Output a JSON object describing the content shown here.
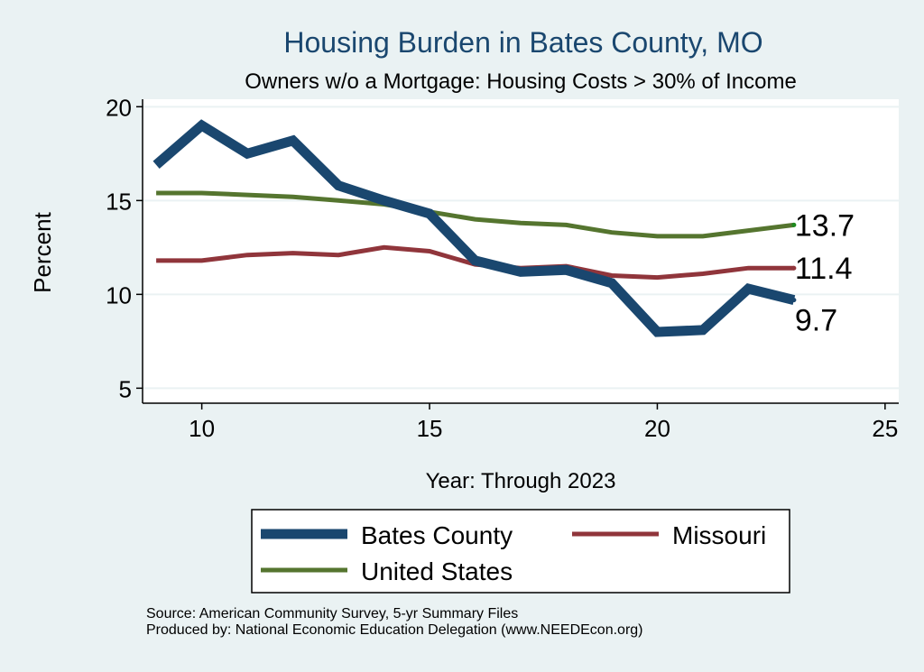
{
  "chart_data": {
    "type": "line",
    "title": "Housing Burden in Bates County, MO",
    "subtitle": "Owners w/o a Mortgage: Housing Costs > 30% of Income",
    "xlabel": "Year: Through 2023",
    "ylabel": "Percent",
    "xlim": [
      8.7,
      25.3
    ],
    "ylim": [
      4.2,
      20.4
    ],
    "xticks": [
      10,
      15,
      20,
      25
    ],
    "yticks": [
      5,
      10,
      15,
      20
    ],
    "grid": true,
    "legend_position": "bottom",
    "x": [
      9,
      10,
      11,
      12,
      13,
      14,
      15,
      16,
      17,
      18,
      19,
      20,
      21,
      22,
      23
    ],
    "series": [
      {
        "name": "Bates County",
        "color": "#1a476f",
        "values": [
          16.9,
          19.0,
          17.5,
          18.2,
          15.8,
          15.0,
          14.3,
          11.8,
          11.2,
          11.3,
          10.6,
          8.0,
          8.1,
          10.3,
          9.7
        ],
        "end_label": "9.7"
      },
      {
        "name": "Missouri",
        "color": "#90353b",
        "values": [
          11.8,
          11.8,
          12.1,
          12.2,
          12.1,
          12.5,
          12.3,
          11.6,
          11.4,
          11.5,
          11.0,
          10.9,
          11.1,
          11.4,
          11.4
        ],
        "end_label": "11.4"
      },
      {
        "name": "United States",
        "color": "#55752f",
        "values": [
          15.4,
          15.4,
          15.3,
          15.2,
          15.0,
          14.8,
          14.4,
          14.0,
          13.8,
          13.7,
          13.3,
          13.1,
          13.1,
          13.4,
          13.7
        ],
        "end_label": "13.7"
      }
    ],
    "source_lines": [
      "Source: American Community Survey, 5-yr Summary Files",
      "Produced by: National Economic Education Delegation (www.NEEDEcon.org)"
    ]
  }
}
